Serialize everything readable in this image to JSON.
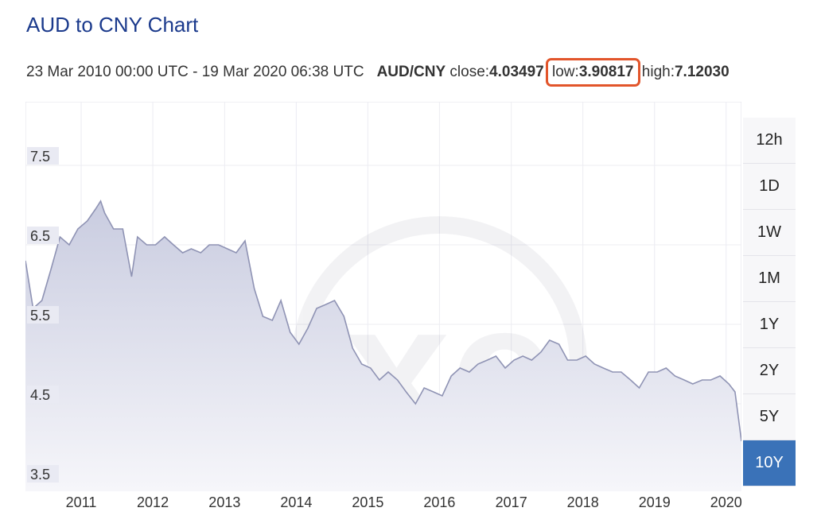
{
  "title": "AUD to CNY Chart",
  "summary": {
    "date_range": "23 Mar 2010 00:00 UTC - 19 Mar 2020 06:38 UTC",
    "pair": "AUD/CNY",
    "close_label": "close:",
    "close_value": "4.03497",
    "low_label": "low:",
    "low_value": "3.90817",
    "high_label": "high:",
    "high_value": "7.12030"
  },
  "range_buttons": [
    "12h",
    "1D",
    "1W",
    "1M",
    "1Y",
    "2Y",
    "5Y",
    "10Y"
  ],
  "active_range": "10Y",
  "colors": {
    "title": "#1b3a8c",
    "line": "#8f93b4",
    "area_top": "#c9cce0",
    "area_bottom": "#f6f6fa",
    "highlight": "#e2552b",
    "active_button": "#3a72b8"
  },
  "chart_data": {
    "type": "area",
    "title": "",
    "xlabel": "",
    "ylabel": "",
    "x_ticks": [
      "2011",
      "2012",
      "2013",
      "2014",
      "2015",
      "2016",
      "2017",
      "2018",
      "2019",
      "2020"
    ],
    "y_ticks": [
      "3.5",
      "4.5",
      "5.5",
      "6.5",
      "7.5"
    ],
    "xlim": [
      "2010-03-23",
      "2020-03-19"
    ],
    "ylim": [
      3.4,
      8.3
    ],
    "grid": true,
    "series": [
      {
        "x": [
          "2010-03-23",
          "2010-05-01",
          "2010-06-15",
          "2010-08-01",
          "2010-09-15",
          "2010-11-01",
          "2010-12-15",
          "2011-02-01",
          "2011-03-15",
          "2011-04-10",
          "2011-05-01",
          "2011-06-15",
          "2011-08-01",
          "2011-09-15",
          "2011-10-15",
          "2011-12-01",
          "2012-01-15",
          "2012-03-01",
          "2012-04-15",
          "2012-06-01",
          "2012-07-15",
          "2012-09-01",
          "2012-10-15",
          "2012-12-01",
          "2013-01-15",
          "2013-03-01",
          "2013-04-15",
          "2013-06-01",
          "2013-07-15",
          "2013-09-01",
          "2013-10-15",
          "2013-12-01",
          "2014-01-15",
          "2014-03-01",
          "2014-04-15",
          "2014-06-01",
          "2014-07-15",
          "2014-09-01",
          "2014-10-15",
          "2014-12-01",
          "2015-01-15",
          "2015-03-01",
          "2015-04-15",
          "2015-06-01",
          "2015-07-15",
          "2015-09-01",
          "2015-10-15",
          "2015-12-01",
          "2016-01-15",
          "2016-03-01",
          "2016-04-15",
          "2016-06-01",
          "2016-07-15",
          "2016-09-01",
          "2016-10-15",
          "2016-12-01",
          "2017-01-15",
          "2017-03-01",
          "2017-04-15",
          "2017-06-01",
          "2017-07-15",
          "2017-09-01",
          "2017-10-15",
          "2017-12-01",
          "2018-01-15",
          "2018-03-01",
          "2018-04-15",
          "2018-06-01",
          "2018-07-15",
          "2018-09-01",
          "2018-10-15",
          "2018-12-01",
          "2019-01-15",
          "2019-03-01",
          "2019-04-15",
          "2019-06-01",
          "2019-07-15",
          "2019-09-01",
          "2019-10-15",
          "2019-12-01",
          "2020-01-15",
          "2020-02-15",
          "2020-03-05",
          "2020-03-19"
        ],
        "y": [
          6.3,
          5.7,
          5.8,
          6.2,
          6.6,
          6.5,
          6.7,
          6.8,
          6.95,
          7.05,
          6.9,
          6.7,
          6.7,
          6.1,
          6.6,
          6.5,
          6.5,
          6.6,
          6.5,
          6.4,
          6.45,
          6.4,
          6.5,
          6.5,
          6.45,
          6.4,
          6.55,
          5.95,
          5.6,
          5.55,
          5.8,
          5.4,
          5.25,
          5.45,
          5.7,
          5.75,
          5.8,
          5.6,
          5.2,
          5.0,
          4.95,
          4.8,
          4.9,
          4.8,
          4.65,
          4.5,
          4.7,
          4.65,
          4.6,
          4.85,
          4.95,
          4.9,
          5.0,
          5.05,
          5.1,
          4.95,
          5.05,
          5.1,
          5.05,
          5.15,
          5.3,
          5.25,
          5.05,
          5.05,
          5.1,
          5.0,
          4.95,
          4.9,
          4.9,
          4.8,
          4.7,
          4.9,
          4.9,
          4.95,
          4.85,
          4.8,
          4.75,
          4.8,
          4.8,
          4.85,
          4.75,
          4.65,
          4.3,
          4.03
        ]
      }
    ]
  }
}
